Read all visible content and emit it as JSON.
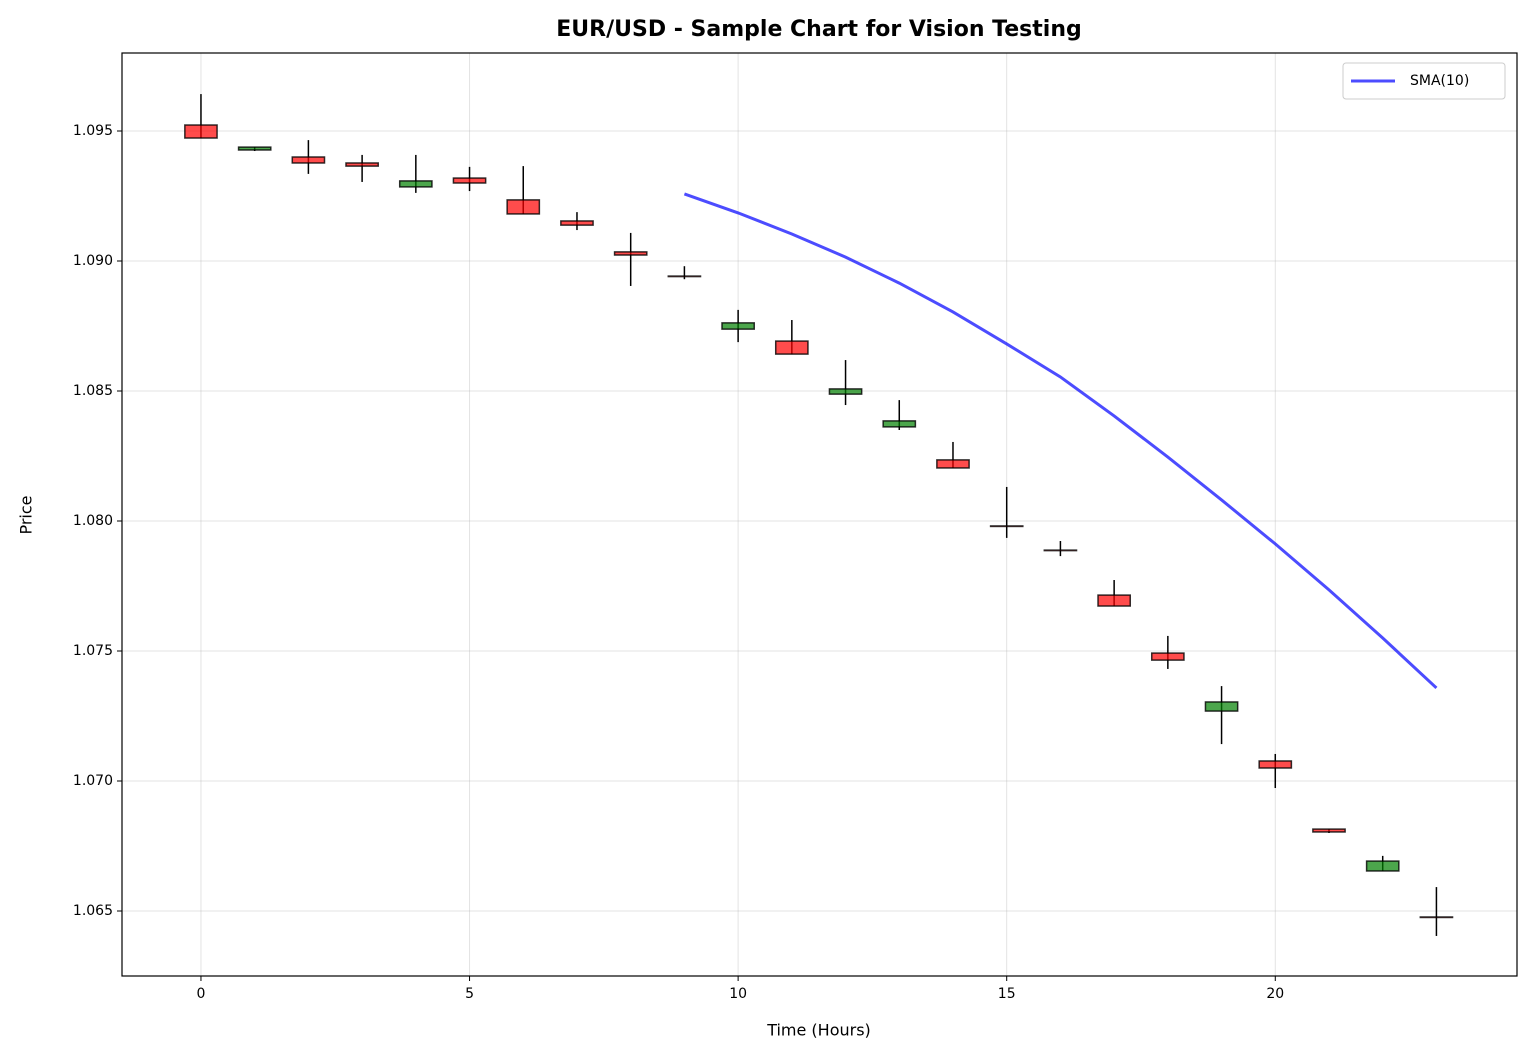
{
  "chart_data": {
    "type": "candlestick",
    "title": "EUR/USD - Sample Chart for Vision Testing",
    "xlabel": "Time (Hours)",
    "ylabel": "Price",
    "x": [
      0,
      1,
      2,
      3,
      4,
      5,
      6,
      7,
      8,
      9,
      10,
      11,
      12,
      13,
      14,
      15,
      16,
      17,
      18,
      19,
      20,
      21,
      22,
      23
    ],
    "open": [
      1.09523,
      1.09427,
      1.094,
      1.09377,
      1.09285,
      1.09319,
      1.09235,
      1.09154,
      1.09035,
      1.08942,
      1.08738,
      1.08692,
      1.08488,
      1.08362,
      1.08235,
      1.07981,
      1.07888,
      1.07715,
      1.07492,
      1.07269,
      1.07077,
      1.06815,
      1.06654,
      1.06477
    ],
    "high": [
      1.09642,
      1.09438,
      1.09465,
      1.09408,
      1.09408,
      1.09362,
      1.09365,
      1.09188,
      1.09108,
      1.0898,
      1.08812,
      1.08773,
      1.08619,
      1.08465,
      1.08304,
      1.08131,
      1.07923,
      1.07773,
      1.07558,
      1.07365,
      1.07104,
      1.06815,
      1.06712,
      1.06592
    ],
    "low": [
      1.09473,
      1.09423,
      1.09335,
      1.09304,
      1.09262,
      1.09269,
      1.09181,
      1.09119,
      1.08904,
      1.0893,
      1.08688,
      1.08642,
      1.08446,
      1.0835,
      1.08204,
      1.07935,
      1.07865,
      1.07673,
      1.07431,
      1.07142,
      1.06973,
      1.068,
      1.06654,
      1.06404
    ],
    "close": [
      1.09473,
      1.09438,
      1.09377,
      1.09365,
      1.09308,
      1.093,
      1.09181,
      1.09138,
      1.09023,
      1.08942,
      1.08762,
      1.08642,
      1.08508,
      1.08385,
      1.08204,
      1.07981,
      1.07888,
      1.07673,
      1.07465,
      1.07304,
      1.0705,
      1.06804,
      1.06692,
      1.06477
    ],
    "up_color": "green",
    "down_color": "red",
    "series": [
      {
        "name": "SMA(10)",
        "color": "#0000ff",
        "values": [
          null,
          null,
          null,
          null,
          null,
          null,
          null,
          null,
          null,
          1.09258,
          1.09185,
          1.09104,
          1.09015,
          1.08915,
          1.08804,
          1.08681,
          1.08554,
          1.08404,
          1.08246,
          1.08081,
          1.07912,
          1.07735,
          1.0755,
          1.07358
        ]
      }
    ],
    "xlim": [
      -1.47,
      24.5
    ],
    "ylim": [
      1.0625,
      1.098
    ],
    "xticks": [
      0,
      5,
      10,
      15,
      20
    ],
    "yticks": [
      1.065,
      {
        "value": 1.07,
        "label": "1.070"
      },
      1.075,
      {
        "value": 1.08,
        "label": "1.080"
      },
      1.085,
      {
        "value": 1.09,
        "label": "1.090"
      },
      1.095
    ],
    "grid": true,
    "legend": "upper right"
  }
}
